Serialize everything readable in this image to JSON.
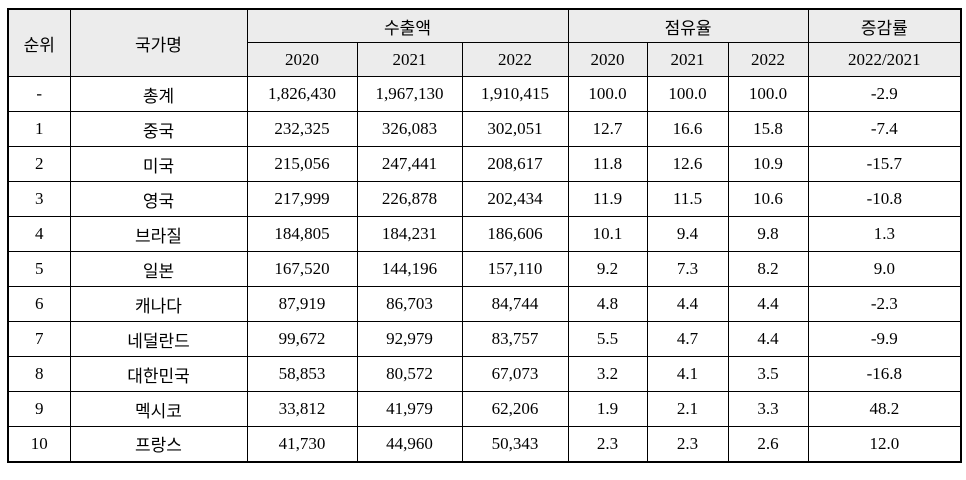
{
  "table": {
    "columns": {
      "rank_label": "순위",
      "country_label": "국가명",
      "export_group_label": "수출액",
      "share_group_label": "점유율",
      "change_group_label": "증감률",
      "export_years": [
        "2020",
        "2021",
        "2022"
      ],
      "share_years": [
        "2020",
        "2021",
        "2022"
      ],
      "change_period_label": "2022/2021"
    },
    "rows": [
      {
        "rank": "-",
        "country": "총계",
        "export": [
          "1,826,430",
          "1,967,130",
          "1,910,415"
        ],
        "share": [
          "100.0",
          "100.0",
          "100.0"
        ],
        "change": "-2.9"
      },
      {
        "rank": "1",
        "country": "중국",
        "export": [
          "232,325",
          "326,083",
          "302,051"
        ],
        "share": [
          "12.7",
          "16.6",
          "15.8"
        ],
        "change": "-7.4"
      },
      {
        "rank": "2",
        "country": "미국",
        "export": [
          "215,056",
          "247,441",
          "208,617"
        ],
        "share": [
          "11.8",
          "12.6",
          "10.9"
        ],
        "change": "-15.7"
      },
      {
        "rank": "3",
        "country": "영국",
        "export": [
          "217,999",
          "226,878",
          "202,434"
        ],
        "share": [
          "11.9",
          "11.5",
          "10.6"
        ],
        "change": "-10.8"
      },
      {
        "rank": "4",
        "country": "브라질",
        "export": [
          "184,805",
          "184,231",
          "186,606"
        ],
        "share": [
          "10.1",
          "9.4",
          "9.8"
        ],
        "change": "1.3"
      },
      {
        "rank": "5",
        "country": "일본",
        "export": [
          "167,520",
          "144,196",
          "157,110"
        ],
        "share": [
          "9.2",
          "7.3",
          "8.2"
        ],
        "change": "9.0"
      },
      {
        "rank": "6",
        "country": "캐나다",
        "export": [
          "87,919",
          "86,703",
          "84,744"
        ],
        "share": [
          "4.8",
          "4.4",
          "4.4"
        ],
        "change": "-2.3"
      },
      {
        "rank": "7",
        "country": "네덜란드",
        "export": [
          "99,672",
          "92,979",
          "83,757"
        ],
        "share": [
          "5.5",
          "4.7",
          "4.4"
        ],
        "change": "-9.9"
      },
      {
        "rank": "8",
        "country": "대한민국",
        "export": [
          "58,853",
          "80,572",
          "67,073"
        ],
        "share": [
          "3.2",
          "4.1",
          "3.5"
        ],
        "change": "-16.8"
      },
      {
        "rank": "9",
        "country": "멕시코",
        "export": [
          "33,812",
          "41,979",
          "62,206"
        ],
        "share": [
          "1.9",
          "2.1",
          "3.3"
        ],
        "change": "48.2"
      },
      {
        "rank": "10",
        "country": "프랑스",
        "export": [
          "41,730",
          "44,960",
          "50,343"
        ],
        "share": [
          "2.3",
          "2.3",
          "2.6"
        ],
        "change": "12.0"
      }
    ]
  },
  "colors": {
    "header_bg": "#ececec",
    "border": "#000000",
    "body_bg": "#ffffff"
  }
}
